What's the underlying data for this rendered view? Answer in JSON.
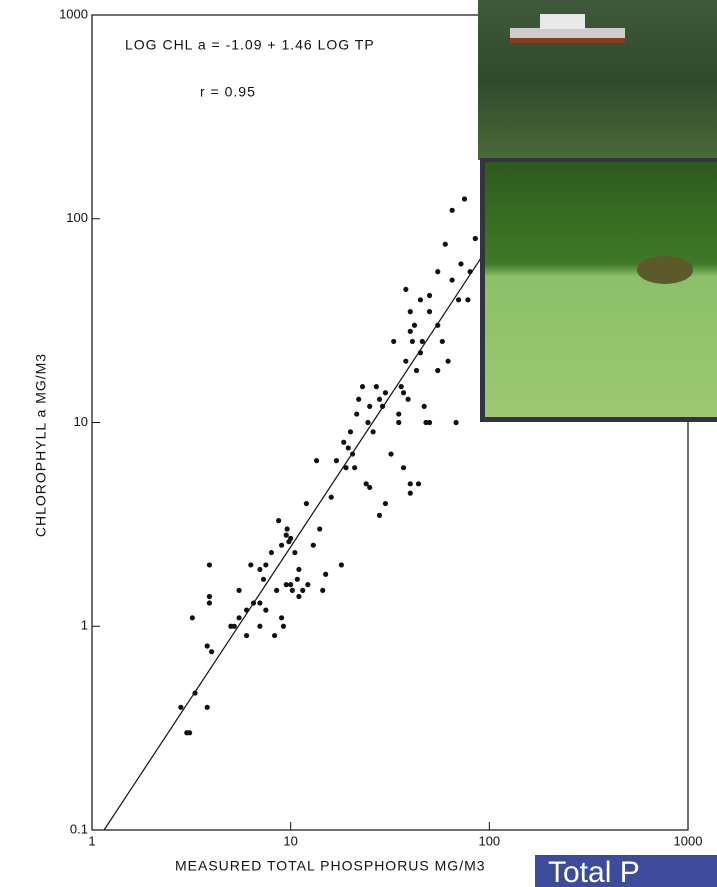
{
  "chart_data": {
    "type": "scatter",
    "annotations": [
      "LOG CHL a = -1.09 + 1.46 LOG TP",
      "r = 0.95"
    ],
    "x_label": "MEASURED TOTAL PHOSPHORUS MG/M3",
    "y_label": "CHLOROPHYLL a MG/M3",
    "log_x": true,
    "log_y": true,
    "xlim": [
      1,
      1000
    ],
    "xticks": [
      1,
      10,
      100,
      1000
    ],
    "ylim": [
      0.1,
      1000
    ],
    "yticks": [
      0.1,
      1,
      10,
      100,
      1000
    ],
    "color": "#111111",
    "x": [
      2.8,
      3,
      3.1,
      3.3,
      3.8,
      3.8,
      4,
      3.2,
      3.9,
      3.9,
      3.9,
      5,
      5.2,
      5.5,
      5.5,
      6,
      6,
      6.3,
      6.5,
      7,
      7,
      7,
      7.3,
      7.5,
      7.5,
      8,
      8.3,
      8.5,
      8.7,
      9,
      9,
      9.2,
      9.5,
      9.5,
      9.6,
      9.8,
      10,
      10,
      10.2,
      10.5,
      10.8,
      11,
      11,
      11.5,
      12,
      12.2,
      13,
      13.5,
      14,
      14.5,
      15,
      16,
      17,
      18,
      18.5,
      19,
      19.5,
      20,
      20.5,
      21,
      21.5,
      22,
      23,
      24,
      24.5,
      25,
      25,
      26,
      27,
      28,
      28,
      29,
      30,
      30,
      32,
      33,
      35,
      35,
      36,
      37,
      37,
      38,
      38,
      39,
      40,
      40,
      40,
      40,
      41,
      42,
      43,
      44,
      45,
      45,
      46,
      47,
      48,
      50,
      50,
      50,
      55,
      55,
      55,
      58,
      60,
      62,
      65,
      65,
      68,
      70,
      72,
      75,
      78,
      80,
      85
    ],
    "values": [
      0.4,
      0.3,
      0.3,
      0.47,
      0.4,
      0.8,
      0.75,
      1.1,
      1.3,
      1.4,
      2,
      1,
      1,
      1.1,
      1.5,
      1.2,
      0.9,
      2,
      1.3,
      1.3,
      1,
      1.9,
      1.7,
      2,
      1.2,
      2.3,
      0.9,
      1.5,
      3.3,
      2.5,
      1.1,
      1,
      1.6,
      2.8,
      3,
      2.6,
      2.7,
      1.6,
      1.5,
      2.3,
      1.7,
      1.4,
      1.9,
      1.5,
      4,
      1.6,
      2.5,
      6.5,
      3,
      1.5,
      1.8,
      4.3,
      6.5,
      2,
      8,
      6,
      7.5,
      9,
      7,
      6,
      11,
      13,
      15,
      5,
      10,
      12,
      4.8,
      9,
      15,
      13,
      3.5,
      12,
      14,
      4,
      7,
      25,
      10,
      11,
      15,
      6,
      14,
      20,
      45,
      13,
      28,
      4.5,
      5,
      35,
      25,
      30,
      18,
      5,
      22,
      40,
      25,
      12,
      10,
      35,
      42,
      10,
      30,
      55,
      18,
      25,
      75,
      20,
      110,
      50,
      10,
      40,
      60,
      125,
      40,
      55,
      80
    ],
    "fit_line": {
      "x": [
        1.15,
        100
      ],
      "values": [
        0.1,
        74
      ]
    }
  },
  "caption_box": "Total P"
}
